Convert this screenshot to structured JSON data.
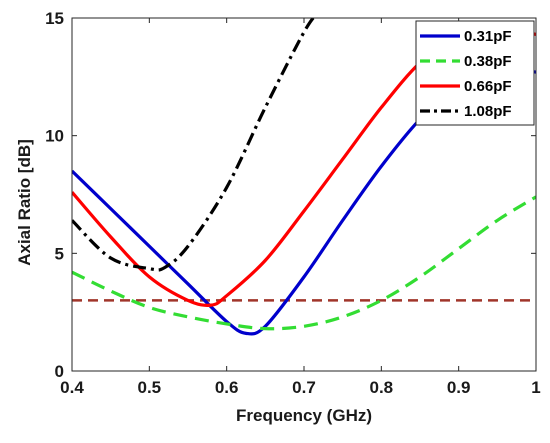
{
  "chart_data": {
    "type": "line",
    "title": "",
    "xlabel": "Frequency (GHz)",
    "ylabel": "Axial Ratio [dB]",
    "xlim": [
      0.4,
      1.0
    ],
    "ylim": [
      0,
      15
    ],
    "x_ticks": [
      "0.4",
      "0.5",
      "0.6",
      "0.7",
      "0.8",
      "0.9",
      "1"
    ],
    "y_ticks": [
      "0",
      "5",
      "10",
      "15"
    ],
    "grid": false,
    "legend_position": "top-right",
    "reference_line": {
      "y": 3,
      "color": "#a0352a",
      "style": "dashed"
    },
    "series": [
      {
        "name": "0.31pF",
        "color": "#0000cc",
        "style": "solid",
        "x": [
          0.4,
          0.45,
          0.5,
          0.55,
          0.6,
          0.625,
          0.65,
          0.7,
          0.75,
          0.8,
          0.85,
          0.9,
          0.95,
          1.0
        ],
        "y": [
          8.5,
          6.9,
          5.3,
          3.7,
          2.1,
          1.6,
          1.9,
          4.0,
          6.4,
          8.7,
          10.7,
          12.2,
          12.9,
          12.7
        ]
      },
      {
        "name": "0.38pF",
        "color": "#33dd33",
        "style": "dashed",
        "x": [
          0.4,
          0.45,
          0.5,
          0.55,
          0.6,
          0.65,
          0.7,
          0.75,
          0.8,
          0.85,
          0.9,
          0.95,
          1.0
        ],
        "y": [
          4.2,
          3.4,
          2.7,
          2.3,
          2.0,
          1.8,
          1.9,
          2.3,
          3.0,
          4.0,
          5.2,
          6.4,
          7.4
        ]
      },
      {
        "name": "0.66pF",
        "color": "#ff0000",
        "style": "solid",
        "x": [
          0.4,
          0.45,
          0.5,
          0.55,
          0.58,
          0.6,
          0.65,
          0.7,
          0.75,
          0.8,
          0.85,
          0.9,
          0.95,
          1.0
        ],
        "y": [
          7.6,
          5.7,
          4.0,
          3.0,
          2.8,
          3.2,
          4.7,
          6.8,
          9.0,
          11.2,
          13.1,
          14.3,
          14.7,
          14.3
        ]
      },
      {
        "name": "1.08pF",
        "color": "#000000",
        "style": "dashdot",
        "x": [
          0.4,
          0.45,
          0.5,
          0.52,
          0.55,
          0.6,
          0.65,
          0.7,
          0.72
        ],
        "y": [
          6.4,
          4.8,
          4.35,
          4.4,
          5.3,
          7.8,
          11.2,
          14.4,
          15.3
        ]
      }
    ]
  }
}
